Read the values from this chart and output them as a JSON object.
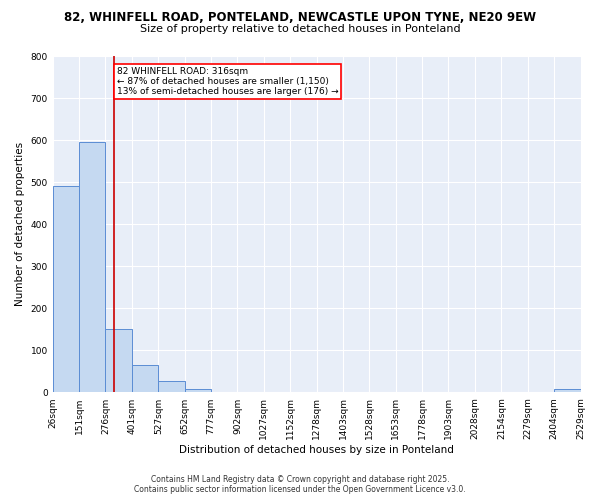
{
  "title_line1": "82, WHINFELL ROAD, PONTELAND, NEWCASTLE UPON TYNE, NE20 9EW",
  "title_line2": "Size of property relative to detached houses in Ponteland",
  "xlabel": "Distribution of detached houses by size in Ponteland",
  "ylabel": "Number of detached properties",
  "bin_edges": [
    26,
    151,
    276,
    401,
    527,
    652,
    777,
    902,
    1027,
    1152,
    1278,
    1403,
    1528,
    1653,
    1778,
    1903,
    2028,
    2154,
    2279,
    2404,
    2529
  ],
  "bar_heights": [
    490,
    595,
    150,
    65,
    28,
    8,
    0,
    0,
    0,
    0,
    0,
    0,
    0,
    0,
    0,
    0,
    0,
    0,
    0,
    8
  ],
  "bar_color": "#c5d9f1",
  "bar_edge_color": "#5b8dd4",
  "red_line_x": 316,
  "annotation_text": "82 WHINFELL ROAD: 316sqm\n← 87% of detached houses are smaller (1,150)\n13% of semi-detached houses are larger (176) →",
  "annotation_box_color": "white",
  "annotation_box_edge_color": "red",
  "red_line_color": "#cc0000",
  "ylim": [
    0,
    800
  ],
  "yticks": [
    0,
    100,
    200,
    300,
    400,
    500,
    600,
    700,
    800
  ],
  "background_color": "#e8eef8",
  "grid_color": "white",
  "tick_label_fontsize": 6.5,
  "ylabel_fontsize": 7.5,
  "xlabel_fontsize": 7.5,
  "title1_fontsize": 8.5,
  "title2_fontsize": 8.0,
  "annotation_fontsize": 6.5,
  "footer_line1": "Contains HM Land Registry data © Crown copyright and database right 2025.",
  "footer_line2": "Contains public sector information licensed under the Open Government Licence v3.0.",
  "footer_fontsize": 5.5
}
